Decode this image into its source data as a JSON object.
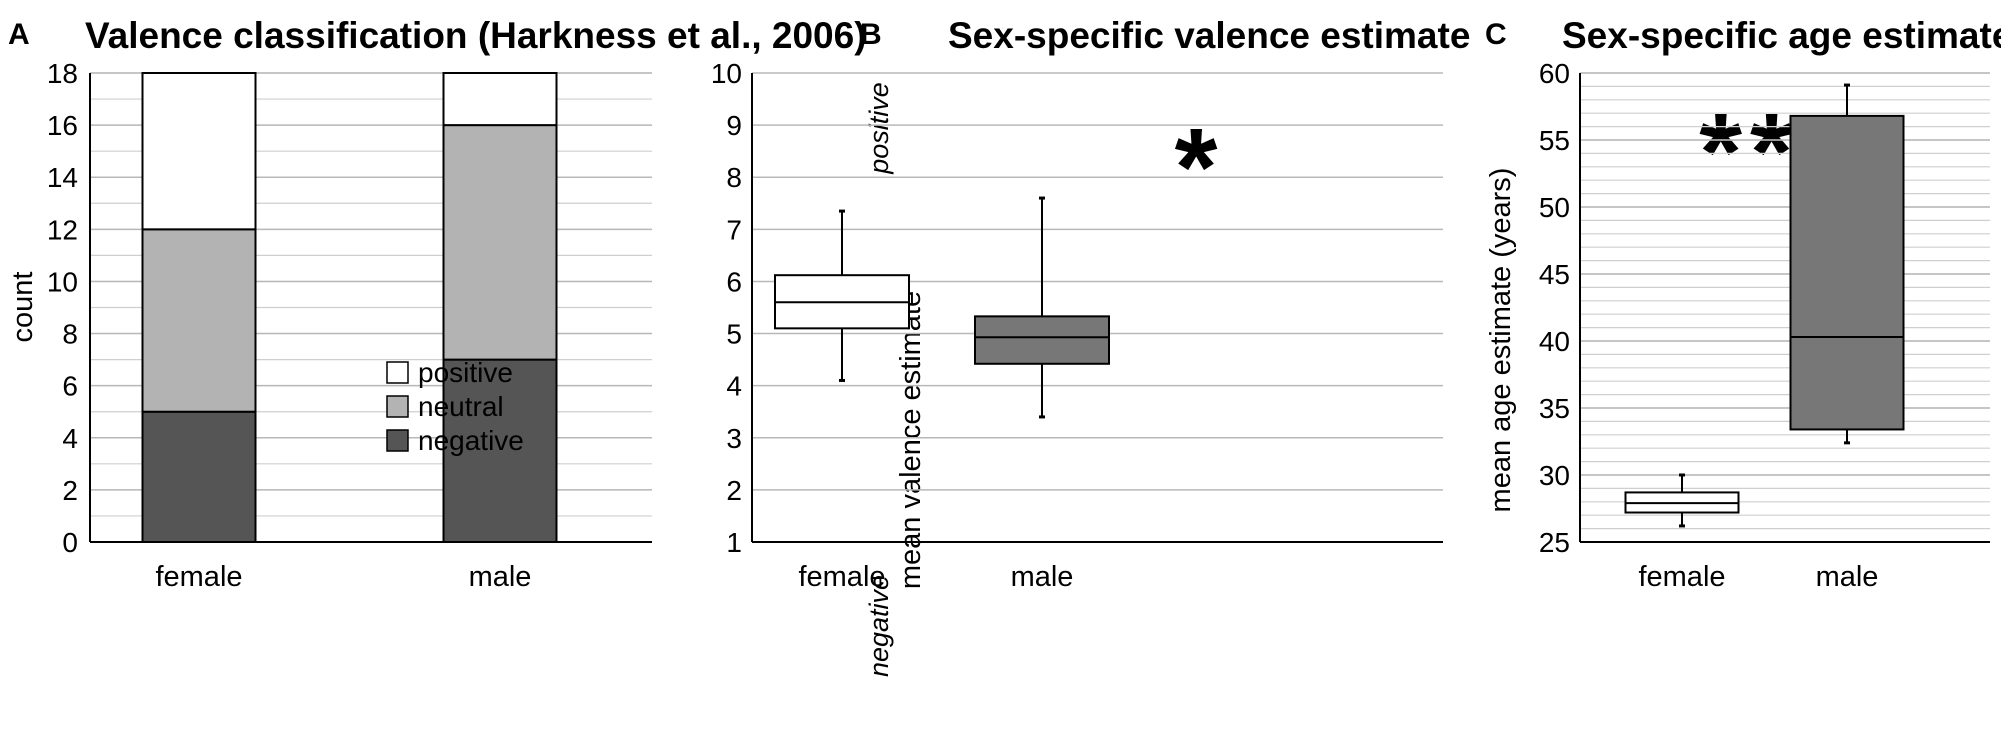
{
  "chart_data": [
    {
      "panel": "A",
      "type": "bar",
      "stacked": true,
      "title": "Valence classification (Harkness et al., 2006)",
      "ylabel": "count",
      "xlabel": "",
      "ylim": [
        0,
        18
      ],
      "yticks": [
        0,
        2,
        4,
        6,
        8,
        10,
        12,
        14,
        16,
        18
      ],
      "categories": [
        "female",
        "male"
      ],
      "series": [
        {
          "name": "negative",
          "values": [
            5,
            7
          ],
          "color": "#555555"
        },
        {
          "name": "neutral",
          "values": [
            7,
            9
          ],
          "color": "#b3b3b3"
        },
        {
          "name": "positive",
          "values": [
            6,
            2
          ],
          "color": "#ffffff"
        }
      ],
      "legend": [
        "positive",
        "neutral",
        "negative"
      ],
      "legend_position": "center"
    },
    {
      "panel": "B",
      "type": "box",
      "title": "Sex-specific valence estimate",
      "ylabel": "mean valence estimate",
      "ylim": [
        1,
        10
      ],
      "yticks": [
        1,
        2,
        3,
        4,
        5,
        6,
        7,
        8,
        9,
        10
      ],
      "categories": [
        "female",
        "male"
      ],
      "boxes": [
        {
          "name": "female",
          "min": 4.1,
          "q1": 5.1,
          "median": 5.6,
          "q3": 6.12,
          "max": 7.35,
          "color": "#ffffff"
        },
        {
          "name": "male",
          "min": 3.4,
          "q1": 4.42,
          "median": 4.93,
          "q3": 5.33,
          "max": 7.6,
          "color": "#777777"
        }
      ],
      "annotations": {
        "top": "positive",
        "bottom": "negative",
        "significance": "*"
      }
    },
    {
      "panel": "C",
      "type": "box",
      "title": "Sex-specific age estimate",
      "ylabel": "mean age estimate (years)",
      "ylim": [
        25,
        60
      ],
      "yticks": [
        25,
        30,
        35,
        40,
        45,
        50,
        55,
        60
      ],
      "categories": [
        "female",
        "male"
      ],
      "boxes": [
        {
          "name": "female",
          "min": 26.2,
          "q1": 27.2,
          "median": 27.9,
          "q3": 28.7,
          "max": 30.0,
          "color": "#ffffff"
        },
        {
          "name": "male",
          "min": 32.4,
          "q1": 33.4,
          "median": 40.3,
          "q3": 56.8,
          "max": 59.1,
          "color": "#777777"
        }
      ],
      "annotations": {
        "significance": "**"
      }
    }
  ]
}
